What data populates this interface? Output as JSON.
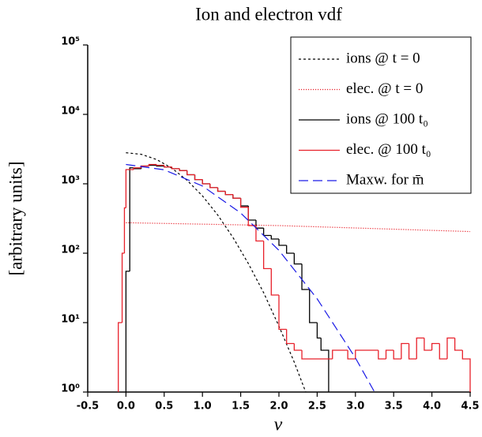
{
  "chart_data": {
    "type": "line",
    "title": "Ion and electron vdf",
    "xlabel": "v",
    "ylabel": "[arbitrary units]",
    "xlim": [
      -0.5,
      4.5
    ],
    "ylim": [
      1,
      100000
    ],
    "yscale": "log",
    "xticks": [
      -0.5,
      {
        "value": 0,
        "label": "0.0"
      },
      0.5,
      {
        "value": 1,
        "label": "1.0"
      },
      1.5,
      {
        "value": 2,
        "label": "2.0"
      },
      2.5,
      {
        "value": 3,
        "label": "3.0"
      },
      3.5,
      {
        "value": 4,
        "label": "4.0"
      },
      4.5
    ],
    "yticks": [
      {
        "value": 1,
        "label": "10⁰"
      },
      {
        "value": 10,
        "label": "10¹"
      },
      {
        "value": 100,
        "label": "10²"
      },
      {
        "value": 1000,
        "label": "10³"
      },
      {
        "value": 10000,
        "label": "10⁴"
      },
      {
        "value": 100000,
        "label": "10⁵"
      }
    ],
    "legend": "upper right",
    "series": [
      {
        "name": "ions @ t = 0",
        "color": "#000000",
        "style": "dashed",
        "drawstyle": "line",
        "x": [
          0,
          0.2,
          0.4,
          0.6,
          0.8,
          1.0,
          1.2,
          1.4,
          1.6,
          1.8,
          2.0,
          2.2,
          2.35
        ],
        "values": [
          2800,
          2660,
          2240,
          1680,
          1120,
          670,
          355,
          168,
          71,
          27,
          8.9,
          2.7,
          1
        ]
      },
      {
        "name": "elec. @ t = 0",
        "color": "#e8202a",
        "style": "dotted",
        "drawstyle": "line",
        "x": [
          0,
          2.0,
          4.5
        ],
        "values": [
          275,
          250,
          205
        ]
      },
      {
        "name": "ions @ 100 t₀",
        "color": "#000000",
        "style": "solid",
        "drawstyle": "steps",
        "bins": [
          0.0,
          0.05,
          0.1,
          0.2,
          0.3,
          0.4,
          0.5,
          0.6,
          0.7,
          0.8,
          0.9,
          1.0,
          1.1,
          1.2,
          1.3,
          1.4,
          1.5,
          1.6,
          1.7,
          1.8,
          1.9,
          2.0,
          2.1,
          2.2,
          2.3,
          2.4,
          2.5,
          2.55,
          2.6,
          2.65
        ],
        "values": [
          55,
          1700,
          1650,
          1800,
          1850,
          1800,
          1750,
          1650,
          1550,
          1350,
          1150,
          1000,
          880,
          780,
          700,
          620,
          480,
          300,
          230,
          180,
          160,
          130,
          100,
          70,
          30,
          10,
          6,
          4,
          4
        ]
      },
      {
        "name": "elec. @ 100 t₀",
        "color": "#e8202a",
        "style": "solid",
        "drawstyle": "steps",
        "bins": [
          -0.1,
          -0.05,
          -0.02,
          0.0,
          0.1,
          0.2,
          0.3,
          0.4,
          0.5,
          0.6,
          0.7,
          0.8,
          0.9,
          1.0,
          1.1,
          1.2,
          1.3,
          1.4,
          1.5,
          1.6,
          1.7,
          1.8,
          1.9,
          2.0,
          2.1,
          2.2,
          2.3,
          2.7,
          2.9,
          3.0,
          3.3,
          3.4,
          3.5,
          3.6,
          3.7,
          3.8,
          3.9,
          4.0,
          4.1,
          4.2,
          4.3,
          4.4,
          4.5
        ],
        "values": [
          10,
          100,
          450,
          1600,
          1700,
          1800,
          1900,
          1850,
          1750,
          1650,
          1550,
          1350,
          1150,
          1000,
          880,
          780,
          700,
          620,
          460,
          250,
          150,
          60,
          25,
          8,
          5,
          4,
          3,
          4,
          3,
          4,
          3,
          4,
          3,
          5,
          3,
          6,
          4,
          5,
          3,
          6,
          4,
          3
        ]
      },
      {
        "name": "Maxw. for m̄",
        "color": "#1a1ae6",
        "style": "longdash",
        "drawstyle": "line",
        "x": [
          0,
          0.5,
          1.0,
          1.5,
          2.0,
          2.5,
          3.0,
          3.25
        ],
        "values": [
          1900,
          1590,
          930,
          380,
          110,
          22,
          3.1,
          1
        ]
      }
    ]
  }
}
